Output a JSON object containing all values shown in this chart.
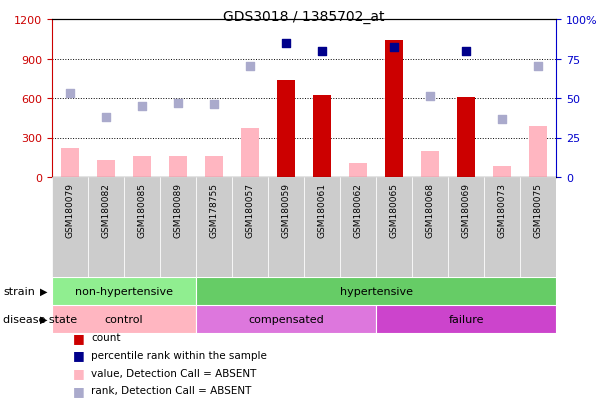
{
  "title": "GDS3018 / 1385702_at",
  "samples": [
    "GSM180079",
    "GSM180082",
    "GSM180085",
    "GSM180089",
    "GSM178755",
    "GSM180057",
    "GSM180059",
    "GSM180061",
    "GSM180062",
    "GSM180065",
    "GSM180068",
    "GSM180069",
    "GSM180073",
    "GSM180075"
  ],
  "count_values": [
    null,
    null,
    null,
    null,
    null,
    null,
    740,
    620,
    null,
    1040,
    null,
    610,
    null,
    null
  ],
  "count_absent": [
    220,
    130,
    160,
    160,
    160,
    370,
    null,
    null,
    110,
    null,
    200,
    null,
    80,
    390
  ],
  "percentile_present": [
    null,
    null,
    null,
    null,
    null,
    null,
    85,
    80,
    null,
    82,
    null,
    80,
    null,
    null
  ],
  "percentile_absent": [
    53,
    38,
    45,
    47,
    46,
    70,
    null,
    null,
    null,
    null,
    51,
    null,
    37,
    70
  ],
  "ylim_left": [
    0,
    1200
  ],
  "ylim_right": [
    0,
    100
  ],
  "yticks_left": [
    0,
    300,
    600,
    900,
    1200
  ],
  "yticks_right": [
    0,
    25,
    50,
    75,
    100
  ],
  "strain_groups": [
    {
      "label": "non-hypertensive",
      "start": 0,
      "end": 4,
      "color": "#90EE90"
    },
    {
      "label": "hypertensive",
      "start": 4,
      "end": 14,
      "color": "#66CC66"
    }
  ],
  "disease_groups": [
    {
      "label": "control",
      "start": 0,
      "end": 4,
      "color": "#FFB6C1"
    },
    {
      "label": "compensated",
      "start": 4,
      "end": 9,
      "color": "#DD77DD"
    },
    {
      "label": "failure",
      "start": 9,
      "end": 14,
      "color": "#CC44CC"
    }
  ],
  "bar_color_present": "#CC0000",
  "bar_color_absent": "#FFB6C1",
  "dot_color_present": "#00008B",
  "dot_color_absent": "#AAAACC",
  "left_axis_color": "#CC0000",
  "right_axis_color": "#0000CC",
  "xtick_bg": "#CCCCCC"
}
